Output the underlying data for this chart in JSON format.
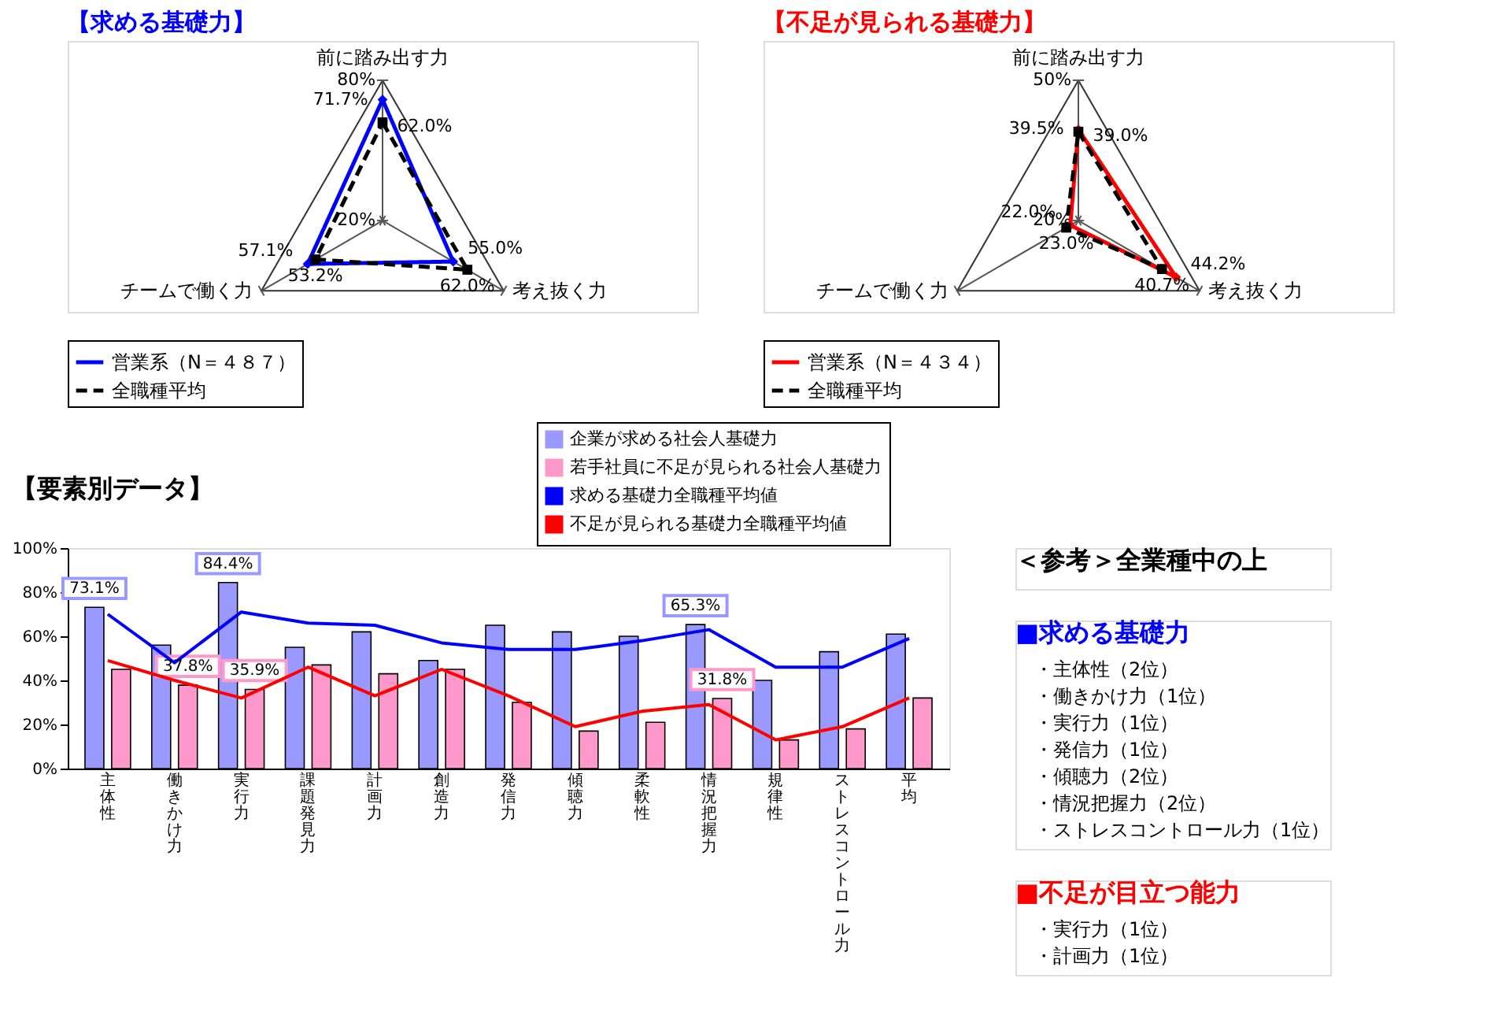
{
  "chart_data": [
    {
      "type": "radar",
      "title": "【求める基礎力】",
      "categories": [
        "前に踏み出す力",
        "考え抜く力",
        "チームで働く力"
      ],
      "ylim": [
        20,
        80
      ],
      "yticks": [
        {
          "value": 20,
          "label": "20%"
        },
        {
          "value": 80,
          "label": "80%"
        }
      ],
      "legend": "bottom",
      "series": [
        {
          "name": "営業系（N＝４８７）",
          "color": "#0000ff",
          "values": [
            71.7,
            55.0,
            57.1
          ],
          "value_labels": [
            "71.7%",
            "55.0%",
            "57.1%"
          ],
          "line_style": "solid",
          "marker": "diamond"
        },
        {
          "name": "全職種平均",
          "color": "#000000",
          "values": [
            62.0,
            62.0,
            53.2
          ],
          "value_labels": [
            "62.0%",
            "62.0%",
            "53.2%"
          ],
          "line_style": "dashed",
          "marker": "square"
        }
      ]
    },
    {
      "type": "radar",
      "title": "【不足が見られる基礎力】",
      "categories": [
        "前に踏み出す力",
        "考え抜く力",
        "チームで働く力"
      ],
      "ylim": [
        20,
        50
      ],
      "yticks": [
        {
          "value": 20,
          "label": "20%"
        },
        {
          "value": 50,
          "label": "50%"
        }
      ],
      "legend": "bottom",
      "series": [
        {
          "name": "営業系（N＝４３４）",
          "color": "#ff0000",
          "values": [
            39.5,
            44.2,
            22.0
          ],
          "value_labels": [
            "39.5%",
            "44.2%",
            "22.0%"
          ],
          "line_style": "solid",
          "marker": "diamond"
        },
        {
          "name": "全職種平均",
          "color": "#000000",
          "values": [
            39.0,
            40.7,
            23.0
          ],
          "value_labels": [
            "39.0%",
            "40.7%",
            "23.0%"
          ],
          "line_style": "dashed",
          "marker": "square"
        }
      ]
    },
    {
      "type": "bar",
      "title": "【要素別データ】",
      "categories": [
        "主体性",
        "働きかけ力",
        "実行力",
        "課題発見力",
        "計画力",
        "創造力",
        "発信力",
        "傾聴力",
        "柔軟性",
        "情況把握力",
        "規律性",
        "ストレスコントロール力",
        "平均"
      ],
      "ylim": [
        0,
        100
      ],
      "yticks": [
        {
          "value": 0,
          "label": "0%"
        },
        {
          "value": 20,
          "label": "20%"
        },
        {
          "value": 40,
          "label": "40%"
        },
        {
          "value": 60,
          "label": "60%"
        },
        {
          "value": 80,
          "label": "80%"
        },
        {
          "value": 100,
          "label": "100%"
        }
      ],
      "legend": "top right",
      "series": [
        {
          "name": "企業が求める社会人基礎力",
          "color": "#9999ff",
          "values": [
            73.1,
            56,
            84.4,
            55,
            62,
            49,
            65,
            62,
            60,
            65.3,
            40,
            53,
            61
          ],
          "value_labels": [
            "73.1%",
            null,
            "84.4%",
            null,
            null,
            null,
            null,
            null,
            null,
            "65.3%",
            null,
            null,
            null
          ]
        },
        {
          "name": "若手社員に不足が見られる社会人基礎力",
          "color": "#ff99cc",
          "values": [
            45,
            37.8,
            35.9,
            47,
            43,
            45,
            30,
            17,
            21,
            31.8,
            13,
            18,
            32
          ],
          "value_labels": [
            null,
            "37.8%",
            "35.9%",
            null,
            null,
            null,
            null,
            null,
            null,
            "31.8%",
            null,
            null,
            null
          ]
        },
        {
          "name": "求める基礎力全職種平均値",
          "color": "#0000ff",
          "type": "line",
          "values": [
            70,
            48,
            71,
            66,
            65,
            57,
            54,
            54,
            58,
            63,
            46,
            46,
            59
          ]
        },
        {
          "name": "不足が見られる基礎力全職種平均値",
          "color": "#ff0000",
          "type": "line",
          "values": [
            49,
            40,
            32,
            46,
            33,
            45,
            33,
            19,
            26,
            29,
            13,
            19,
            32
          ]
        }
      ]
    },
    {
      "type": "other",
      "title": "＜参考＞全業種中の上",
      "color": "#000000"
    },
    {
      "type": "other",
      "title": "■求める基礎力",
      "color": "#0000ff",
      "annotations": [
        "・主体性（2位）",
        "・働きかけ力（1位）",
        "・実行力（1位）",
        "・発信力（1位）",
        "・傾聴力（2位）",
        "・情況把握力（2位）",
        "・ストレスコントロール力（1位）"
      ]
    },
    {
      "type": "other",
      "title": "■不足が目立つ能力",
      "color": "#ff0000",
      "annotations": [
        "・実行力（1位）",
        "・計画力（1位）"
      ]
    }
  ]
}
